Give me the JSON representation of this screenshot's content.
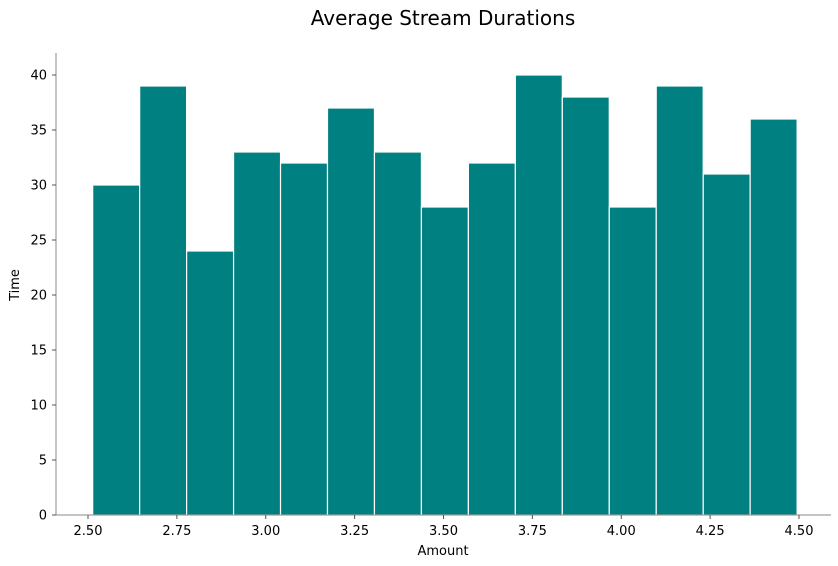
{
  "chart_data": {
    "type": "bar",
    "title": "Average Stream Durations",
    "xlabel": "Amount",
    "ylabel": "Time",
    "bin_edges": [
      2.5132,
      2.6453,
      2.7774,
      2.9095,
      3.0416,
      3.1737,
      3.3058,
      3.4379,
      3.57,
      3.7021,
      3.8342,
      3.9663,
      4.0984,
      4.2305,
      4.3626,
      4.4947
    ],
    "values": [
      30,
      39,
      24,
      33,
      32,
      37,
      33,
      28,
      32,
      40,
      38,
      28,
      39,
      31,
      36
    ],
    "xlim": [
      2.41,
      4.59
    ],
    "ylim": [
      0,
      42
    ],
    "xticks": [
      2.5,
      2.75,
      3.0,
      3.25,
      3.5,
      3.75,
      4.0,
      4.25,
      4.5
    ],
    "xtick_labels": [
      "2.50",
      "2.75",
      "3.00",
      "3.25",
      "3.50",
      "3.75",
      "4.00",
      "4.25",
      "4.50"
    ],
    "yticks": [
      0,
      5,
      10,
      15,
      20,
      25,
      30,
      35,
      40
    ],
    "ytick_labels": [
      "0",
      "5",
      "10",
      "15",
      "20",
      "25",
      "30",
      "35",
      "40"
    ],
    "bar_color": "#008080",
    "grid": false,
    "legend": "none"
  }
}
